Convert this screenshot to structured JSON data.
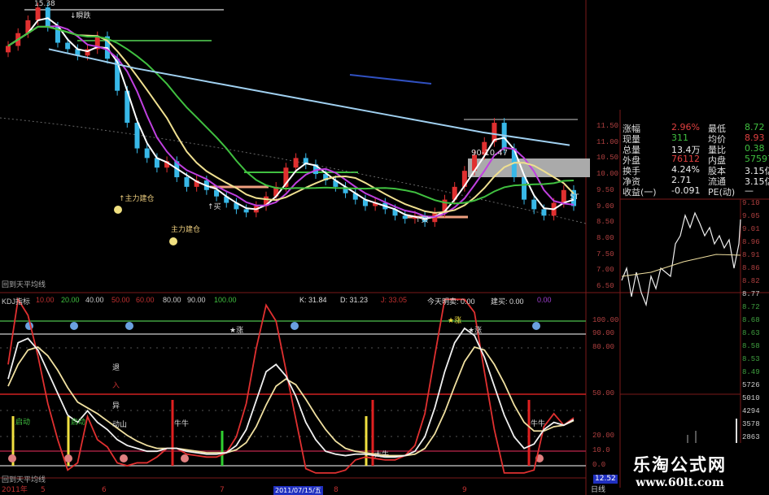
{
  "colors": {
    "background": "#000000",
    "up": "#e03030",
    "down": "#38b8e8",
    "ma5": "#ffffff",
    "ma10": "#c040e0",
    "ma20": "#f0e090",
    "ma30": "#40c040",
    "ma_long": "#a0d0f0",
    "grid": "#7a1a1a",
    "k": "#f0f0f0",
    "d": "#f0e0a0",
    "j": "#e03030"
  },
  "main_panel": {
    "annotations": {
      "high": "15.38",
      "drop": "↓瞬跌",
      "range": "90-10.47",
      "t_mark": "5T",
      "build1": "↑主力建仓",
      "build2": "主力建仓",
      "buy1": "↑买",
      "buy2": "↑买"
    },
    "price_axis": [
      "11.50",
      "11.00",
      "10.50",
      "10.00",
      "9.50",
      "9.00",
      "8.50",
      "8.00",
      "7.50",
      "7.00",
      "6.50"
    ]
  },
  "indicator_title": "回到天平均线",
  "kdj_header": {
    "name": "KDJ指标",
    "levels": [
      "10.00",
      "20.00",
      "40.00",
      "50.00",
      "60.00",
      "80.00",
      "90.00",
      "100.00"
    ],
    "k": "K: 31.84",
    "d": "D: 31.23",
    "j": "J: 33.05",
    "today_sell": "今天明卖: 0.00",
    "buy": "建买: 0.00",
    "extra": "0.00"
  },
  "kdj_axis": [
    "100.00",
    "90.00",
    "80.00",
    "50.00",
    "20.00",
    "10.0",
    "0.0"
  ],
  "kdj_labels": {
    "exit": "退",
    "enter": "入",
    "abnormal": "异",
    "move": "动山",
    "star1": "★涨",
    "star2": "★涨",
    "star3": "★涨",
    "start1": "启动",
    "start2": "启动",
    "bull1": "牛牛",
    "bull2": "牛牛",
    "big_bull": "大牛"
  },
  "cursor_value": "12.52",
  "date_axis": {
    "year": "2011年",
    "months": [
      "5",
      "6",
      "7",
      "8",
      "9"
    ],
    "cursor_date": "2011/07/15/五"
  },
  "bottom_title": "回到天平均线",
  "info_panel": {
    "rows": [
      {
        "l1": "涨幅",
        "v1": "2.96%",
        "l2": "最低",
        "v2": "8.72"
      },
      {
        "l1": "现量",
        "v1": "311",
        "l2": "均价",
        "v2": "8.93"
      },
      {
        "l1": "总量",
        "v1": "13.4万",
        "l2": "量比",
        "v2": "0.38"
      },
      {
        "l1": "外盘",
        "v1": "76112",
        "l2": "内盘",
        "v2": "57597"
      },
      {
        "l1": "换手",
        "v1": "4.24%",
        "l2": "股本",
        "v2": "3.15亿"
      },
      {
        "l1": "净资",
        "v1": "2.71",
        "l2": "流通",
        "v2": "3.15亿"
      },
      {
        "l1": "收益(一)",
        "v1": "-0.091",
        "l2": "PE(动)",
        "v2": "—"
      }
    ]
  },
  "intraday_axis": [
    "9.10",
    "9.05",
    "9.01",
    "8.96",
    "8.91",
    "8.86",
    "8.82",
    "8.77",
    "8.72",
    "8.68",
    "8.63",
    "8.58",
    "8.53",
    "8.49",
    "5726",
    "5010",
    "4294",
    "3578",
    "2863"
  ],
  "tab": "日线",
  "watermark": {
    "name": "乐淘公式网",
    "url": "www.60lt.com"
  },
  "chart_data": {
    "type": "candlestick",
    "closes": [
      14.0,
      14.4,
      14.8,
      15.2,
      14.6,
      14.1,
      13.9,
      13.7,
      13.9,
      14.3,
      13.6,
      12.6,
      11.6,
      10.8,
      10.5,
      10.2,
      10.4,
      9.9,
      9.6,
      9.8,
      9.5,
      9.3,
      9.1,
      8.9,
      8.8,
      9.0,
      9.3,
      9.6,
      10.2,
      10.5,
      10.3,
      10.0,
      9.8,
      9.6,
      9.4,
      9.2,
      9.0,
      9.1,
      8.9,
      8.7,
      8.6,
      8.7,
      8.5,
      8.8,
      9.2,
      9.6,
      10.1,
      10.6,
      11.0,
      11.6,
      10.8,
      9.9,
      9.2,
      8.9,
      8.7,
      9.1,
      9.5,
      9.0
    ],
    "ma_long": [
      13.9,
      13.3,
      12.8,
      12.3,
      11.8,
      11.3,
      10.9
    ],
    "kdj": {
      "k": [
        60,
        85,
        88,
        80,
        65,
        50,
        35,
        30,
        38,
        30,
        25,
        18,
        14,
        12,
        10,
        10,
        12,
        12,
        10,
        9,
        8,
        8,
        9,
        14,
        25,
        45,
        65,
        70,
        62,
        48,
        30,
        18,
        10,
        8,
        7,
        8,
        8,
        7,
        6,
        6,
        7,
        10,
        20,
        40,
        65,
        85,
        95,
        90,
        75,
        55,
        35,
        20,
        12,
        15,
        25,
        30,
        28,
        31.84
      ],
      "d": [
        55,
        70,
        80,
        82,
        76,
        66,
        54,
        44,
        40,
        36,
        31,
        26,
        21,
        17,
        14,
        12,
        12,
        12,
        11,
        10,
        9,
        9,
        9,
        11,
        16,
        27,
        42,
        55,
        60,
        56,
        46,
        35,
        25,
        17,
        12,
        10,
        9,
        8,
        7,
        7,
        7,
        8,
        12,
        22,
        37,
        55,
        72,
        82,
        80,
        70,
        57,
        42,
        30,
        24,
        24,
        27,
        28,
        31.23
      ]
    },
    "ylim": [
      6.5,
      15.5
    ]
  }
}
